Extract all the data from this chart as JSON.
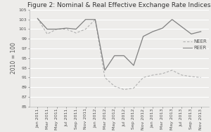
{
  "title": "Figure 2: Nominal & Real Effective Exchange Rate Indices",
  "ylabel": "2010 = 100",
  "ylim": [
    85,
    105
  ],
  "yticks": [
    85,
    87,
    89,
    91,
    93,
    95,
    97,
    99,
    101,
    103,
    105
  ],
  "background_color": "#edecea",
  "plot_bg_color": "#edecea",
  "labels": [
    "Jan 2011",
    "Mar 2011",
    "May 2011",
    "Jul 2011",
    "Sep 2011",
    "Nov 2011",
    "Jan 2012",
    "Mar 2012",
    "May 2012",
    "Jul 2012",
    "Sep 2012",
    "Nov 2012",
    "Jan 2013",
    "Mar 2013",
    "May 2013",
    "Jul 2013",
    "Sep 2013",
    "Nov 2013"
  ],
  "neer": [
    103.2,
    100.0,
    101.0,
    101.0,
    100.2,
    101.0,
    103.0,
    91.0,
    89.2,
    88.5,
    88.8,
    91.0,
    91.5,
    91.8,
    92.5,
    91.5,
    91.2,
    91.0
  ],
  "reer": [
    103.2,
    101.0,
    101.0,
    101.2,
    101.0,
    103.0,
    103.0,
    92.5,
    95.5,
    95.5,
    93.5,
    99.5,
    100.5,
    101.2,
    103.0,
    101.5,
    100.0,
    100.5
  ],
  "neer_color": "#b0b0b0",
  "reer_color": "#808080",
  "title_fontsize": 6.5,
  "axis_fontsize": 5.5,
  "tick_fontsize": 4.5,
  "legend_fontsize": 5.0
}
